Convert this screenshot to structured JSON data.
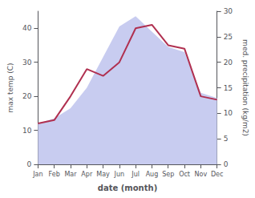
{
  "chart_data": {
    "type": "line",
    "categories": [
      "Jan",
      "Feb",
      "Mar",
      "Apr",
      "May",
      "Jun",
      "Jul",
      "Aug",
      "Sep",
      "Oct",
      "Nov",
      "Dec"
    ],
    "xlabel": "date (month)",
    "ylabel": "max temp (C)",
    "y2label": "med. precipitation (kg/m2)",
    "series": [
      {
        "type": "area",
        "axis": "y2",
        "color": "#c8ccf0",
        "values": [
          8,
          9,
          11,
          15,
          21,
          27,
          29,
          26,
          23,
          22,
          14,
          13
        ]
      },
      {
        "type": "line",
        "color": "#b03050",
        "values": [
          12,
          13,
          20,
          28,
          26,
          30,
          40,
          41,
          35,
          34,
          20,
          19
        ]
      }
    ],
    "ylim": [
      0,
      45
    ],
    "yticks": [
      0,
      10,
      20,
      30,
      40
    ],
    "y2lim": [
      0,
      30
    ],
    "y2ticks": [
      0,
      5,
      10,
      15,
      20,
      25,
      30
    ],
    "grid": false
  }
}
